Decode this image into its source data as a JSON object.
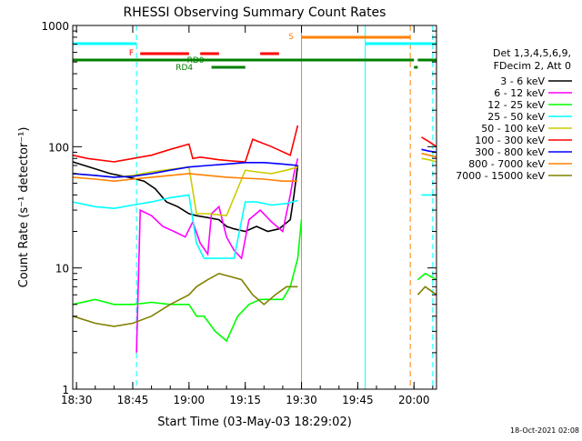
{
  "chart_data": {
    "type": "line",
    "title": "RHESSI Observing Summary Count Rates",
    "xlabel": "Start Time (03-May-03 18:29:02)",
    "ylabel": "Count Rate (s⁻¹ detector⁻¹)",
    "yscale": "log",
    "xlim": [
      "18:29",
      "20:06"
    ],
    "ylim": [
      1,
      1000
    ],
    "x_ticks": [
      "18:30",
      "18:45",
      "19:00",
      "19:15",
      "19:30",
      "19:45",
      "20:00"
    ],
    "y_ticks": [
      "1",
      "10",
      "100",
      "1000"
    ],
    "timestamp": "18-Oct-2021 02:08",
    "legend_position": "right",
    "legend_header": [
      "Det 1,3,4,5,6,9,",
      "FDecim 2, Att 0"
    ],
    "series": [
      {
        "name": "3 - 6 keV",
        "color": "#000000",
        "x": [
          "18:29",
          "18:39",
          "18:45",
          "18:48",
          "18:51",
          "18:54",
          "18:57",
          "19:00",
          "19:02",
          "19:05",
          "19:08",
          "19:10",
          "19:12",
          "19:15",
          "19:18",
          "19:21",
          "19:24",
          "19:27",
          "19:28",
          "19:29"
        ],
        "values": [
          75,
          60,
          55,
          52,
          45,
          35,
          32,
          28,
          27,
          26,
          25,
          22,
          21,
          20,
          22,
          20,
          21,
          25,
          40,
          70
        ]
      },
      {
        "name": "6 - 12 keV",
        "color": "#ff00ff",
        "x": [
          "18:46",
          "18:47",
          "18:50",
          "18:53",
          "18:56",
          "18:59",
          "19:01",
          "19:03",
          "19:05",
          "19:06",
          "19:08",
          "19:10",
          "19:12",
          "19:14",
          "19:16",
          "19:19",
          "19:22",
          "19:25",
          "19:27",
          "19:28",
          "19:29"
        ],
        "values": [
          2,
          30,
          27,
          22,
          20,
          18,
          24,
          16,
          13,
          28,
          32,
          18,
          14,
          12,
          25,
          30,
          24,
          20,
          40,
          60,
          80
        ]
      },
      {
        "name": "12 - 25 keV",
        "color": "#00ff00",
        "x": [
          "18:29",
          "18:35",
          "18:40",
          "18:45",
          "18:50",
          "18:55",
          "19:00",
          "19:02",
          "19:04",
          "19:07",
          "19:10",
          "19:13",
          "19:16",
          "19:19",
          "19:22",
          "19:25",
          "19:27",
          "19:29",
          "19:30"
        ],
        "values": [
          5,
          5.5,
          5,
          5,
          5.2,
          5,
          5,
          4,
          4,
          3,
          2.5,
          4,
          5,
          5.5,
          5.5,
          5.5,
          7,
          12,
          25
        ]
      },
      {
        "name": "25 - 50 keV",
        "color": "#00ffff",
        "x": [
          "18:29",
          "18:35",
          "18:40",
          "18:45",
          "18:50",
          "18:55",
          "19:00",
          "19:02",
          "19:04",
          "19:08",
          "19:12",
          "19:15",
          "19:18",
          "19:22",
          "19:26",
          "19:29"
        ],
        "values": [
          35,
          32,
          31,
          33,
          35,
          38,
          40,
          16,
          12,
          12,
          12,
          35,
          35,
          33,
          34,
          36
        ]
      },
      {
        "name": "50 - 100 keV",
        "color": "#cccc00",
        "x": [
          "18:29",
          "18:35",
          "18:40",
          "18:45",
          "18:50",
          "18:55",
          "19:00",
          "19:02",
          "19:05",
          "19:10",
          "19:15",
          "19:18",
          "19:22",
          "19:26",
          "19:29"
        ],
        "values": [
          60,
          58,
          56,
          58,
          62,
          65,
          68,
          28,
          28,
          27,
          64,
          62,
          60,
          64,
          68
        ]
      },
      {
        "name": "100 - 300 keV",
        "color": "#ff0000",
        "x": [
          "18:29",
          "18:33",
          "18:40",
          "18:45",
          "18:50",
          "18:55",
          "19:00",
          "19:01",
          "19:03",
          "19:08",
          "19:12",
          "19:15",
          "19:17",
          "19:22",
          "19:27",
          "19:29"
        ],
        "values": [
          85,
          80,
          75,
          80,
          85,
          95,
          105,
          80,
          82,
          78,
          76,
          75,
          115,
          100,
          85,
          150
        ]
      },
      {
        "name": "300 - 800 keV",
        "color": "#0000ff",
        "x": [
          "18:29",
          "18:35",
          "18:40",
          "18:45",
          "18:50",
          "18:55",
          "19:00",
          "19:05",
          "19:10",
          "19:15",
          "19:20",
          "19:25",
          "19:29"
        ],
        "values": [
          60,
          58,
          56,
          57,
          60,
          64,
          68,
          70,
          72,
          74,
          74,
          72,
          70
        ]
      },
      {
        "name": "800 - 7000 keV",
        "color": "#ff8000",
        "x": [
          "18:29",
          "18:35",
          "18:40",
          "18:45",
          "18:50",
          "18:55",
          "19:00",
          "19:05",
          "19:10",
          "19:15",
          "19:20",
          "19:25",
          "19:29"
        ],
        "values": [
          56,
          54,
          52,
          54,
          56,
          58,
          60,
          58,
          56,
          55,
          54,
          52,
          52
        ]
      },
      {
        "name": "7000 - 15000 keV",
        "color": "#808000",
        "x": [
          "18:29",
          "18:35",
          "18:40",
          "18:45",
          "18:50",
          "18:55",
          "19:00",
          "19:02",
          "19:05",
          "19:08",
          "19:11",
          "19:14",
          "19:17",
          "19:20",
          "19:23",
          "19:26",
          "19:29"
        ],
        "values": [
          4,
          3.5,
          3.3,
          3.5,
          4,
          5,
          6,
          7,
          8,
          9,
          8.5,
          8,
          6,
          5,
          6,
          7,
          7
        ]
      }
    ],
    "series_after_gap": [
      {
        "name": "100 - 300 keV",
        "x": [
          "20:02",
          "20:04",
          "20:06"
        ],
        "values": [
          120,
          110,
          100
        ]
      },
      {
        "name": "300 - 800 keV",
        "x": [
          "20:02",
          "20:04",
          "20:06"
        ],
        "values": [
          95,
          92,
          90
        ]
      },
      {
        "name": "800 - 7000 keV",
        "x": [
          "20:02",
          "20:04",
          "20:06"
        ],
        "values": [
          88,
          85,
          82
        ]
      },
      {
        "name": "50 - 100 keV",
        "x": [
          "20:02",
          "20:04",
          "20:06"
        ],
        "values": [
          80,
          78,
          75
        ]
      },
      {
        "name": "25 - 50 keV",
        "x": [
          "20:02",
          "20:04",
          "20:06"
        ],
        "values": [
          40,
          40,
          40
        ]
      },
      {
        "name": "12 - 25 keV",
        "x": [
          "20:01",
          "20:03",
          "20:06"
        ],
        "values": [
          8,
          9,
          8
        ]
      },
      {
        "name": "7000 - 15000 keV",
        "x": [
          "20:01",
          "20:03",
          "20:06"
        ],
        "values": [
          6,
          7,
          6
        ]
      }
    ],
    "flag_bars": [
      {
        "label": "",
        "color": "#00ffff",
        "segments": [
          [
            "18:29",
            "18:46"
          ],
          [
            "19:47",
            "20:06"
          ]
        ]
      },
      {
        "label": "S",
        "color": "#ff8000",
        "segments": [
          [
            "19:30",
            "19:59"
          ]
        ]
      },
      {
        "label": "F",
        "color": "#ff0000",
        "segments": [
          [
            "18:47",
            "19:00"
          ],
          [
            "19:03",
            "19:08"
          ],
          [
            "19:19",
            "19:24"
          ]
        ]
      },
      {
        "label": "RD0",
        "color": "#008000",
        "segments": [
          [
            "18:29",
            "20:00"
          ],
          [
            "20:01",
            "20:06"
          ]
        ]
      },
      {
        "label": "RD4",
        "color": "#008000",
        "segments": [
          [
            "19:06",
            "19:15"
          ],
          [
            "20:00",
            "20:01"
          ]
        ]
      }
    ],
    "vlines": [
      {
        "x": "18:46",
        "color": "#00ffff",
        "style": "dashed"
      },
      {
        "x": "19:30",
        "color": "#ff8000",
        "style": "solid"
      },
      {
        "x": "19:47",
        "color": "#00ffff",
        "style": "solid"
      },
      {
        "x": "19:59",
        "color": "#ff8000",
        "style": "dashed"
      },
      {
        "x": "20:05",
        "color": "#00ffff",
        "style": "dashed"
      }
    ]
  }
}
